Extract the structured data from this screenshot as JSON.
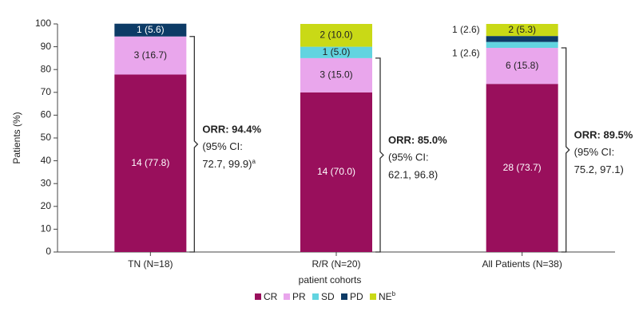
{
  "chart_data": {
    "type": "stacked-bar",
    "ylabel": "Patients (%)",
    "xlabel": "patient cohorts",
    "categories": [
      "TN (N=18)",
      "R/R (N=20)",
      "All Patients (N=38)"
    ],
    "ylim": [
      0,
      100
    ],
    "yticks": [
      0,
      10,
      20,
      30,
      40,
      50,
      60,
      70,
      80,
      90,
      100
    ],
    "series": [
      {
        "name": "CR",
        "color": "#990f5c",
        "values": [
          77.8,
          70.0,
          73.7
        ],
        "value_labels": [
          "14 (77.8)",
          "14 (70.0)",
          "28 (73.7)"
        ]
      },
      {
        "name": "PR",
        "color": "#e9a6ec",
        "values": [
          16.7,
          15.0,
          15.8
        ],
        "value_labels": [
          "3 (16.7)",
          "3 (15.0)",
          "6 (15.8)"
        ]
      },
      {
        "name": "SD",
        "color": "#62d4e0",
        "values": [
          null,
          5.0,
          2.6
        ],
        "value_labels": [
          null,
          "1 (5.0)",
          "1 (2.6)"
        ]
      },
      {
        "name": "PD",
        "color": "#0d3b66",
        "values": [
          5.6,
          null,
          2.6
        ],
        "value_labels": [
          "1 (5.6)",
          null,
          "1 (2.6)"
        ]
      },
      {
        "name": "NE",
        "name_note": "b",
        "color": "#c9d916",
        "values": [
          null,
          10.0,
          5.3
        ],
        "value_labels": [
          null,
          "2 (10.0)",
          "2 (5.3)"
        ]
      }
    ],
    "annotations": [
      {
        "title": "ORR: 94.4%",
        "lines": [
          "(95% CI:",
          "72.7, 99.9)"
        ],
        "note": "a"
      },
      {
        "title": "ORR: 85.0%",
        "lines": [
          "(95% CI:",
          "62.1, 96.8)"
        ]
      },
      {
        "title": "ORR: 89.5%",
        "lines": [
          "(95% CI:",
          "75.2, 97.1)"
        ]
      }
    ]
  }
}
